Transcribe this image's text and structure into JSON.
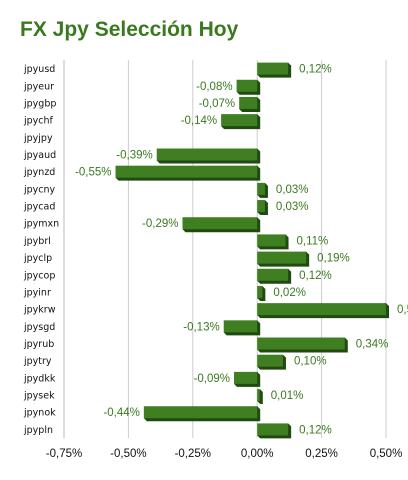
{
  "chart_data": {
    "type": "bar",
    "orientation": "horizontal",
    "title": "FX Jpy Selección Hoy",
    "categories": [
      "jpyusd",
      "jpyeur",
      "jpygbp",
      "jpychf",
      "jpyjpy",
      "jpyaud",
      "jpynzd",
      "jpycny",
      "jpycad",
      "jpymxn",
      "jpybrl",
      "jpyclp",
      "jpycop",
      "jpyinr",
      "jpykrw",
      "jpysgd",
      "jpyrub",
      "jpytry",
      "jpydkk",
      "jpysek",
      "jpynok",
      "jpypln"
    ],
    "values": [
      0.12,
      -0.08,
      -0.07,
      -0.14,
      null,
      -0.39,
      -0.55,
      0.03,
      0.03,
      -0.29,
      0.11,
      0.19,
      0.12,
      0.02,
      0.5,
      -0.13,
      0.34,
      0.1,
      -0.09,
      0.01,
      -0.44,
      0.12
    ],
    "value_labels": [
      "0,12%",
      "-0,08%",
      "-0,07%",
      "-0,14%",
      "",
      "-0,39%",
      "-0,55%",
      "0,03%",
      "0,03%",
      "-0,29%",
      "0,11%",
      "0,19%",
      "0,12%",
      "0,02%",
      "0,5",
      "-0,13%",
      "0,34%",
      "0,10%",
      "-0,09%",
      "0,01%",
      "-0,44%",
      "0,12%"
    ],
    "x_ticks": [
      -0.75,
      -0.5,
      -0.25,
      0,
      0.25,
      0.5
    ],
    "x_tick_labels": [
      "-0,75%",
      "-0,50%",
      "-0,25%",
      "0,00%",
      "0,25%",
      "0,50%"
    ],
    "xlim": [
      -0.75,
      0.5
    ],
    "grid": true,
    "colors": {
      "bar": "#3f7f22",
      "bar_shadow": "#1f4a10",
      "label": "#3a7a1f",
      "grid": "#cccccc",
      "title": "#3a7a1f"
    }
  }
}
